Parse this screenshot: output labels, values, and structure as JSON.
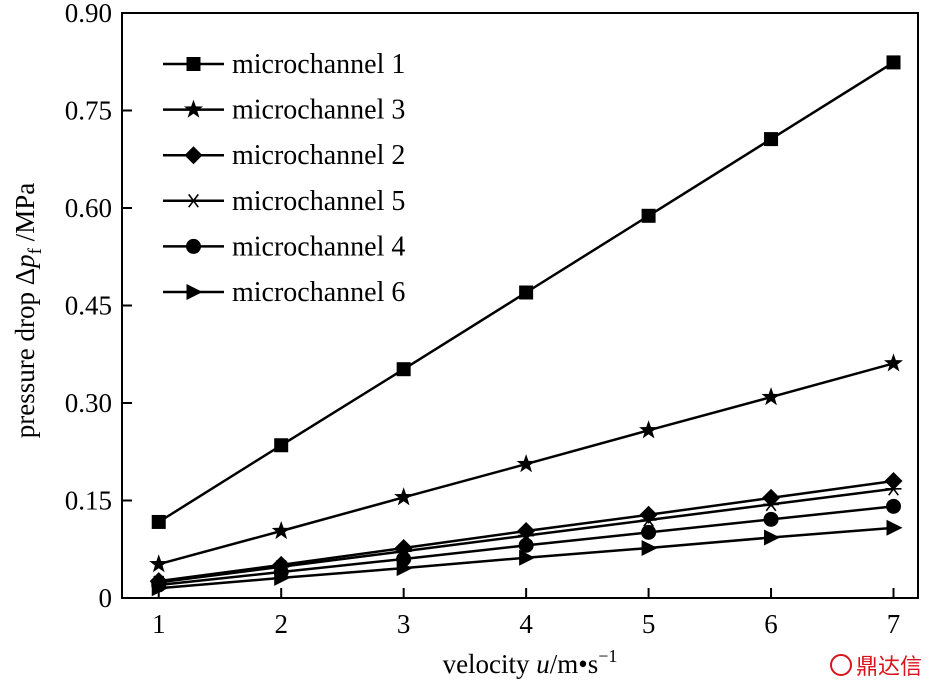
{
  "chart_data": {
    "type": "line",
    "x": [
      1,
      2,
      3,
      4,
      5,
      6,
      7
    ],
    "xlim": [
      0.7,
      7.2
    ],
    "ylim": [
      0,
      0.9
    ],
    "x_ticks": [
      "1",
      "2",
      "3",
      "4",
      "5",
      "6",
      "7"
    ],
    "y_ticks": [
      "0",
      "0.15",
      "0.30",
      "0.45",
      "0.60",
      "0.75",
      "0.90"
    ],
    "y_tick_values": [
      0,
      0.15,
      0.3,
      0.45,
      0.6,
      0.75,
      0.9
    ],
    "xlabel": {
      "pre": "velocity ",
      "var": "u",
      "unit": "/m•s",
      "sup": "−1"
    },
    "ylabel": {
      "pre": "pressure drop Δ",
      "var": "p",
      "sub": "f",
      "unit": " /MPa"
    },
    "grid": false,
    "legend_position": "top-left",
    "series": [
      {
        "name": "microchannel 1",
        "marker": "square",
        "values": [
          0.117,
          0.235,
          0.352,
          0.47,
          0.588,
          0.706,
          0.824
        ]
      },
      {
        "name": "microchannel 3",
        "marker": "star",
        "values": [
          0.052,
          0.103,
          0.155,
          0.206,
          0.258,
          0.309,
          0.361
        ]
      },
      {
        "name": "microchannel 2",
        "marker": "diamond",
        "values": [
          0.026,
          0.051,
          0.077,
          0.103,
          0.128,
          0.154,
          0.18
        ]
      },
      {
        "name": "microchannel 5",
        "marker": "asterisk",
        "values": [
          0.024,
          0.048,
          0.072,
          0.096,
          0.12,
          0.144,
          0.168
        ]
      },
      {
        "name": "microchannel 4",
        "marker": "circle",
        "values": [
          0.02,
          0.04,
          0.06,
          0.081,
          0.101,
          0.121,
          0.141
        ]
      },
      {
        "name": "microchannel 6",
        "marker": "triangle-right",
        "values": [
          0.015,
          0.031,
          0.046,
          0.062,
          0.077,
          0.093,
          0.108
        ]
      }
    ]
  },
  "watermark": {
    "text": "鼎达信",
    "color": "#d9141c"
  }
}
